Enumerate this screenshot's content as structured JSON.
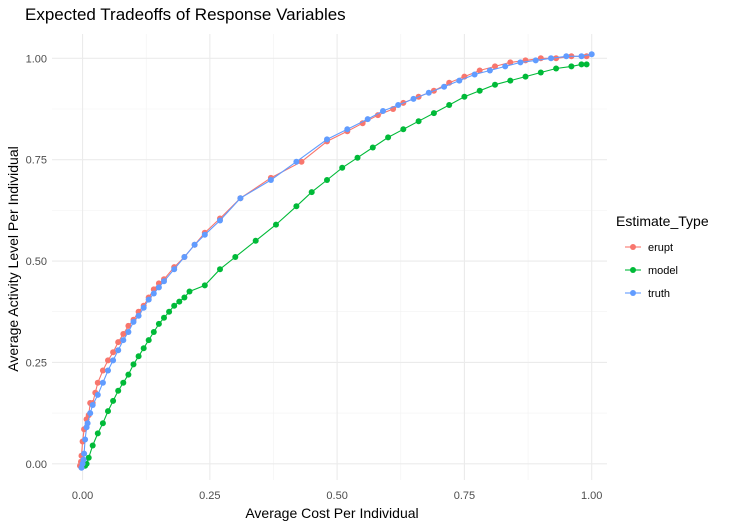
{
  "chart_data": {
    "type": "line",
    "title": "Expected Tradeoffs of Response Variables",
    "xlabel": "Average Cost Per Individual",
    "ylabel": "Average Activity Level Per Individual",
    "xlim": [
      -0.06,
      1.03
    ],
    "ylim": [
      -0.04,
      1.06
    ],
    "x_ticks": [
      0.0,
      0.25,
      0.5,
      0.75,
      1.0
    ],
    "x_tick_labels": [
      "0.00",
      "0.25",
      "0.50",
      "0.75",
      "1.00"
    ],
    "y_ticks": [
      0.0,
      0.25,
      0.5,
      0.75,
      1.0
    ],
    "y_tick_labels": [
      "0.00",
      "0.25",
      "0.50",
      "0.75",
      "1.00"
    ],
    "grid": true,
    "legend": {
      "title": "Estimate_Type",
      "position": "right",
      "entries": [
        "erupt",
        "model",
        "truth"
      ]
    },
    "series": [
      {
        "name": "erupt",
        "color": "#F8766D",
        "points": [
          [
            -0.005,
            -0.005
          ],
          [
            -0.003,
            0.005
          ],
          [
            -0.002,
            0.02
          ],
          [
            0.0,
            0.055
          ],
          [
            0.003,
            0.085
          ],
          [
            0.008,
            0.11
          ],
          [
            0.012,
            0.12
          ],
          [
            0.015,
            0.15
          ],
          [
            0.02,
            0.15
          ],
          [
            0.025,
            0.175
          ],
          [
            0.03,
            0.2
          ],
          [
            0.04,
            0.23
          ],
          [
            0.05,
            0.255
          ],
          [
            0.06,
            0.275
          ],
          [
            0.07,
            0.3
          ],
          [
            0.08,
            0.32
          ],
          [
            0.09,
            0.34
          ],
          [
            0.1,
            0.355
          ],
          [
            0.11,
            0.375
          ],
          [
            0.12,
            0.39
          ],
          [
            0.13,
            0.41
          ],
          [
            0.14,
            0.43
          ],
          [
            0.15,
            0.445
          ],
          [
            0.16,
            0.455
          ],
          [
            0.18,
            0.485
          ],
          [
            0.2,
            0.51
          ],
          [
            0.22,
            0.54
          ],
          [
            0.24,
            0.57
          ],
          [
            0.27,
            0.605
          ],
          [
            0.31,
            0.655
          ],
          [
            0.37,
            0.705
          ],
          [
            0.43,
            0.745
          ],
          [
            0.48,
            0.795
          ],
          [
            0.52,
            0.82
          ],
          [
            0.55,
            0.84
          ],
          [
            0.58,
            0.86
          ],
          [
            0.61,
            0.875
          ],
          [
            0.63,
            0.89
          ],
          [
            0.66,
            0.905
          ],
          [
            0.69,
            0.92
          ],
          [
            0.72,
            0.94
          ],
          [
            0.75,
            0.955
          ],
          [
            0.78,
            0.97
          ],
          [
            0.81,
            0.98
          ],
          [
            0.84,
            0.99
          ],
          [
            0.87,
            0.995
          ],
          [
            0.9,
            1.0
          ],
          [
            0.93,
            1.0
          ],
          [
            0.96,
            1.005
          ],
          [
            0.99,
            1.005
          ]
        ]
      },
      {
        "name": "model",
        "color": "#00BA38",
        "points": [
          [
            0.005,
            -0.005
          ],
          [
            0.008,
            0.0
          ],
          [
            0.012,
            0.015
          ],
          [
            0.02,
            0.045
          ],
          [
            0.03,
            0.075
          ],
          [
            0.04,
            0.1
          ],
          [
            0.05,
            0.13
          ],
          [
            0.06,
            0.155
          ],
          [
            0.07,
            0.18
          ],
          [
            0.08,
            0.2
          ],
          [
            0.09,
            0.22
          ],
          [
            0.1,
            0.245
          ],
          [
            0.11,
            0.265
          ],
          [
            0.12,
            0.285
          ],
          [
            0.13,
            0.305
          ],
          [
            0.14,
            0.325
          ],
          [
            0.15,
            0.345
          ],
          [
            0.16,
            0.36
          ],
          [
            0.17,
            0.375
          ],
          [
            0.18,
            0.39
          ],
          [
            0.19,
            0.4
          ],
          [
            0.2,
            0.41
          ],
          [
            0.21,
            0.425
          ],
          [
            0.24,
            0.44
          ],
          [
            0.27,
            0.48
          ],
          [
            0.3,
            0.51
          ],
          [
            0.34,
            0.55
          ],
          [
            0.38,
            0.59
          ],
          [
            0.42,
            0.635
          ],
          [
            0.45,
            0.67
          ],
          [
            0.48,
            0.7
          ],
          [
            0.51,
            0.73
          ],
          [
            0.54,
            0.755
          ],
          [
            0.57,
            0.78
          ],
          [
            0.6,
            0.805
          ],
          [
            0.63,
            0.825
          ],
          [
            0.66,
            0.845
          ],
          [
            0.69,
            0.865
          ],
          [
            0.72,
            0.885
          ],
          [
            0.75,
            0.905
          ],
          [
            0.78,
            0.92
          ],
          [
            0.81,
            0.935
          ],
          [
            0.84,
            0.945
          ],
          [
            0.87,
            0.955
          ],
          [
            0.9,
            0.965
          ],
          [
            0.93,
            0.975
          ],
          [
            0.96,
            0.98
          ],
          [
            0.98,
            0.985
          ],
          [
            0.99,
            0.985
          ]
        ]
      },
      {
        "name": "truth",
        "color": "#619CFF",
        "points": [
          [
            -0.002,
            -0.01
          ],
          [
            0.0,
            0.0
          ],
          [
            0.002,
            0.01
          ],
          [
            0.003,
            0.025
          ],
          [
            0.005,
            0.06
          ],
          [
            0.008,
            0.09
          ],
          [
            0.01,
            0.1
          ],
          [
            0.015,
            0.125
          ],
          [
            0.02,
            0.145
          ],
          [
            0.03,
            0.17
          ],
          [
            0.04,
            0.2
          ],
          [
            0.05,
            0.23
          ],
          [
            0.06,
            0.255
          ],
          [
            0.07,
            0.28
          ],
          [
            0.08,
            0.305
          ],
          [
            0.09,
            0.325
          ],
          [
            0.1,
            0.35
          ],
          [
            0.11,
            0.365
          ],
          [
            0.12,
            0.385
          ],
          [
            0.13,
            0.405
          ],
          [
            0.14,
            0.42
          ],
          [
            0.15,
            0.435
          ],
          [
            0.16,
            0.45
          ],
          [
            0.18,
            0.48
          ],
          [
            0.2,
            0.51
          ],
          [
            0.22,
            0.54
          ],
          [
            0.24,
            0.565
          ],
          [
            0.27,
            0.6
          ],
          [
            0.31,
            0.655
          ],
          [
            0.37,
            0.7
          ],
          [
            0.42,
            0.745
          ],
          [
            0.48,
            0.8
          ],
          [
            0.52,
            0.825
          ],
          [
            0.56,
            0.85
          ],
          [
            0.59,
            0.87
          ],
          [
            0.62,
            0.885
          ],
          [
            0.65,
            0.9
          ],
          [
            0.68,
            0.915
          ],
          [
            0.71,
            0.93
          ],
          [
            0.74,
            0.945
          ],
          [
            0.77,
            0.96
          ],
          [
            0.8,
            0.97
          ],
          [
            0.83,
            0.98
          ],
          [
            0.86,
            0.99
          ],
          [
            0.89,
            0.995
          ],
          [
            0.92,
            1.0
          ],
          [
            0.95,
            1.005
          ],
          [
            0.98,
            1.005
          ],
          [
            1.0,
            1.01
          ]
        ]
      }
    ]
  }
}
